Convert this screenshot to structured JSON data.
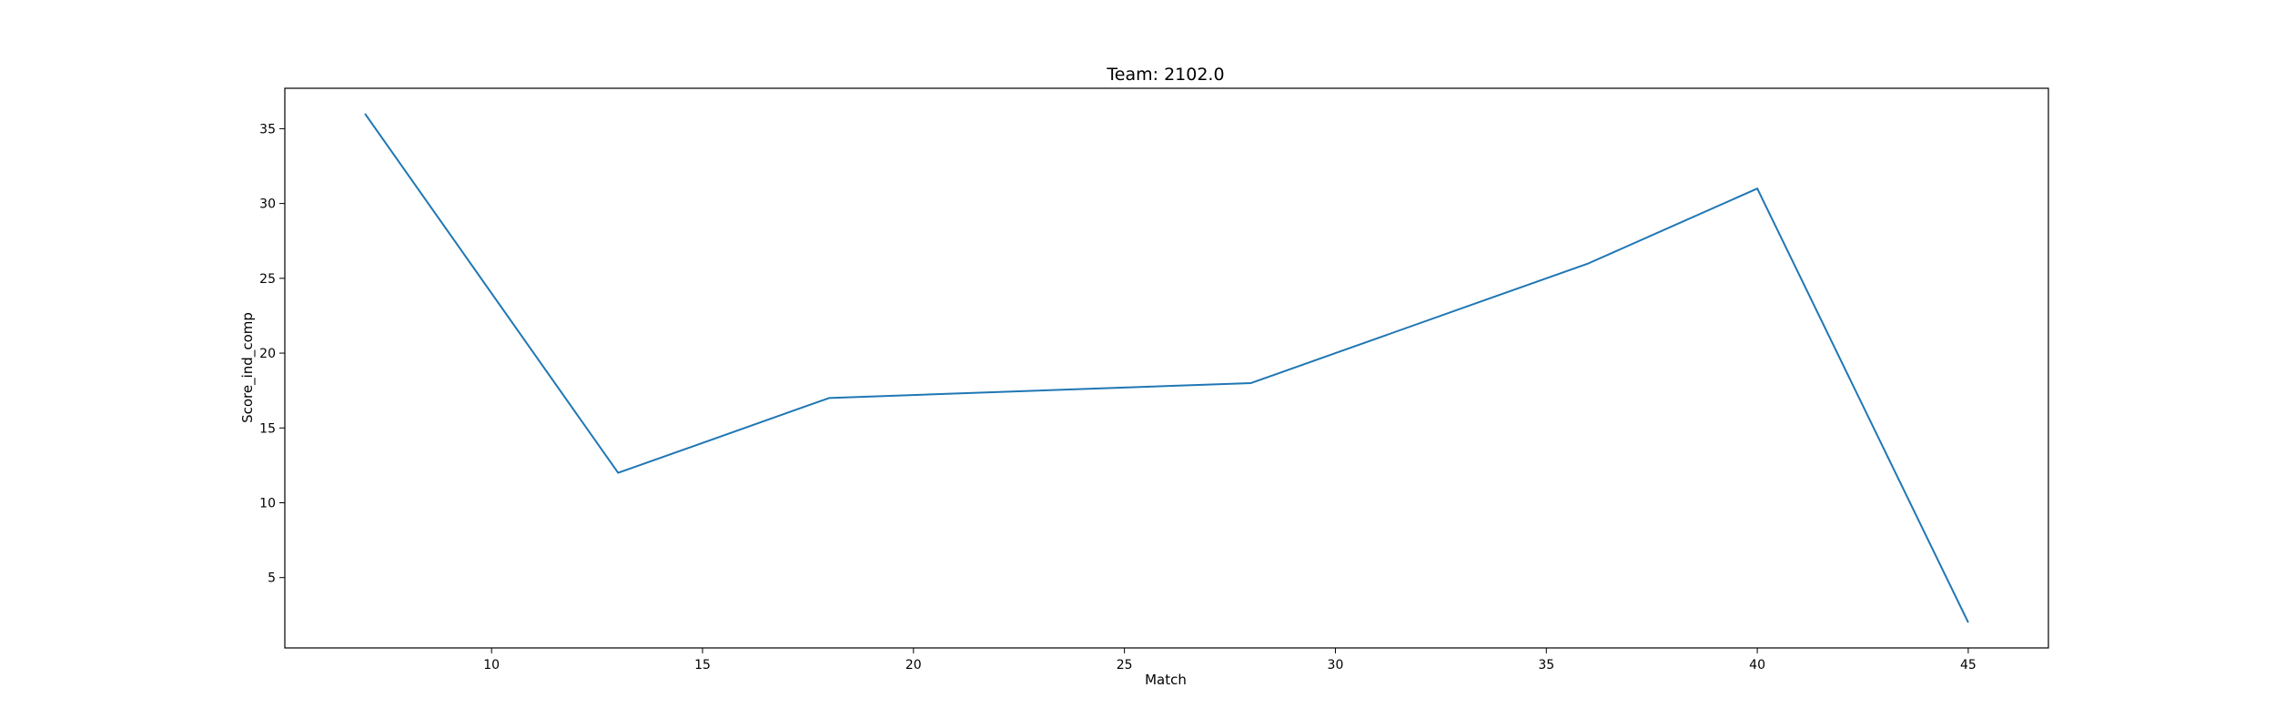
{
  "chart_data": {
    "type": "line",
    "title": "Team: 2102.0",
    "xlabel": "Match",
    "ylabel": "Score_ind_comp",
    "xlim": [
      5.1,
      46.9
    ],
    "ylim": [
      0.3,
      37.7
    ],
    "xticks": [
      10,
      15,
      20,
      25,
      30,
      35,
      40,
      45
    ],
    "yticks": [
      5,
      10,
      15,
      20,
      25,
      30,
      35
    ],
    "grid": false,
    "series": [
      {
        "color": "#1f77b4",
        "x": [
          7,
          13,
          18,
          28,
          36,
          40,
          45
        ],
        "y": [
          36,
          12,
          17,
          18,
          26,
          31,
          2
        ]
      }
    ]
  }
}
